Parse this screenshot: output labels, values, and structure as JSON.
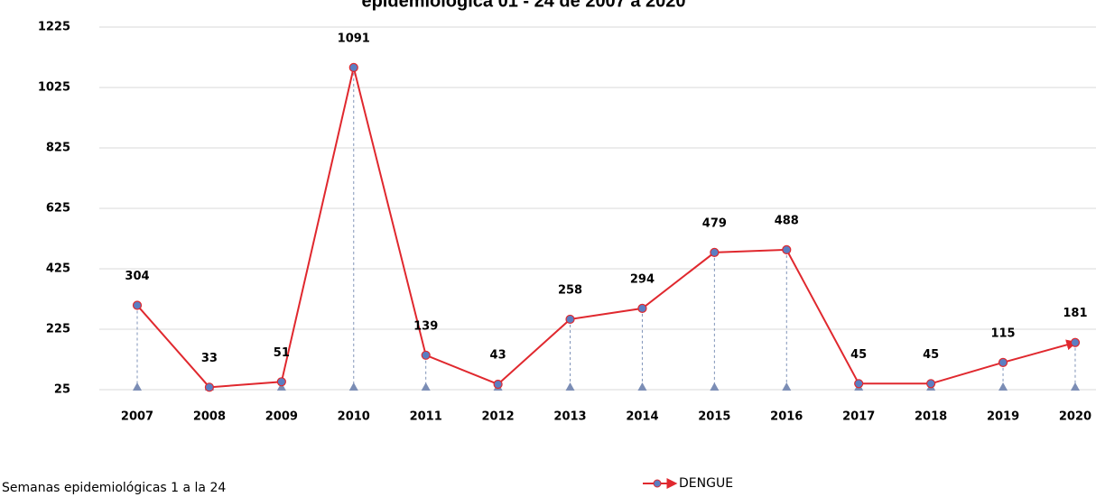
{
  "chart_data": {
    "type": "line",
    "title": "epidemiológica 01 - 24 de 2007 a 2020",
    "x_label": "Semanas epidemiológicas 1 a la 24",
    "categories": [
      "2007",
      "2008",
      "2009",
      "2010",
      "2011",
      "2012",
      "2013",
      "2014",
      "2015",
      "2016",
      "2017",
      "2018",
      "2019",
      "2020"
    ],
    "series": [
      {
        "name": "DENGUE",
        "color": "#e0282e",
        "marker_color": "#5b7ec2",
        "values": [
          304,
          33,
          51,
          1091,
          139,
          43,
          258,
          294,
          479,
          488,
          45,
          45,
          115,
          181
        ]
      }
    ],
    "ylim": [
      25,
      1225
    ],
    "yticks": [
      25,
      225,
      425,
      625,
      825,
      1025,
      1225
    ],
    "grid": true,
    "legend": "bottom"
  }
}
